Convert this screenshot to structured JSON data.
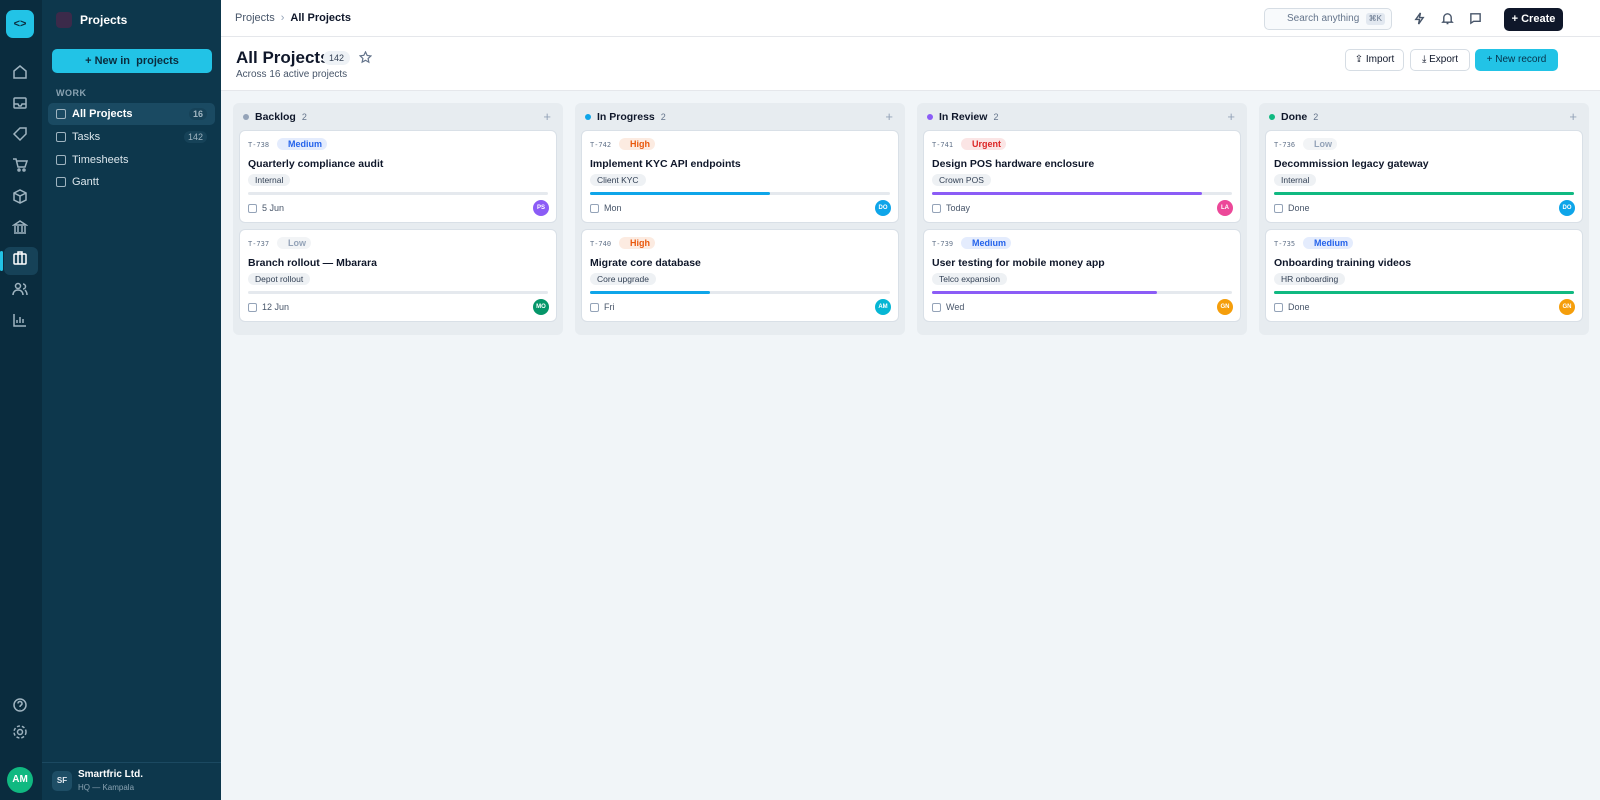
{
  "rail": {
    "avatar": "AM"
  },
  "sidebar": {
    "title": "Projects",
    "new_button": "New in  projects",
    "section": "WORK",
    "items": [
      {
        "label": "All Projects",
        "count": 16
      },
      {
        "label": "Tasks",
        "count": 142
      },
      {
        "label": "Timesheets"
      },
      {
        "label": "Gantt"
      }
    ],
    "org": {
      "initials": "SF",
      "name": "Smartfric Ltd.",
      "location": "HQ — Kampala"
    }
  },
  "topbar": {
    "breadcrumbs": [
      "Projects",
      "All Projects"
    ],
    "search": "Search anything",
    "shortcut": "⌘K",
    "create": "Create"
  },
  "header": {
    "title": "All Projects",
    "count": 142,
    "subtitle": "Across 16 active projects",
    "actions": [
      "Import",
      "Export",
      "New record"
    ]
  },
  "board": {
    "columns": [
      {
        "name": "Backlog",
        "color": "#94a3b8",
        "count": 2,
        "cards": [
          {
            "id": "T-738",
            "priority": "Medium",
            "priority_color": "#2563eb",
            "title": "Quarterly compliance audit",
            "tag": "Internal",
            "progress": 0,
            "due": "5 Jun",
            "assignee": "PS",
            "assignee_color": "#8b5cf6"
          },
          {
            "id": "T-737",
            "priority": "Low",
            "priority_color": "#94a3b8",
            "title": "Branch rollout — Mbarara",
            "tag": "Depot rollout",
            "progress": 0,
            "due": "12 Jun",
            "assignee": "MO",
            "assignee_color": "#059669"
          }
        ]
      },
      {
        "name": "In Progress",
        "color": "#0ea5e9",
        "count": 2,
        "cards": [
          {
            "id": "T-742",
            "priority": "High",
            "priority_color": "#ea580c",
            "title": "Implement KYC API endpoints",
            "tag": "Client KYC",
            "progress": 60,
            "due": "Mon",
            "assignee": "DO",
            "assignee_color": "#0ea5e9"
          },
          {
            "id": "T-740",
            "priority": "High",
            "priority_color": "#ea580c",
            "title": "Migrate core database",
            "tag": "Core upgrade",
            "progress": 40,
            "due": "Fri",
            "assignee": "AM",
            "assignee_color": "#06b6d4"
          }
        ]
      },
      {
        "name": "In Review",
        "color": "#8b5cf6",
        "count": 2,
        "cards": [
          {
            "id": "T-741",
            "priority": "Urgent",
            "priority_color": "#dc2626",
            "title": "Design POS hardware enclosure",
            "tag": "Crown POS",
            "progress": 90,
            "due": "Today",
            "assignee": "LA",
            "assignee_color": "#ec4899"
          },
          {
            "id": "T-739",
            "priority": "Medium",
            "priority_color": "#2563eb",
            "title": "User testing for mobile money app",
            "tag": "Telco expansion",
            "progress": 75,
            "due": "Wed",
            "assignee": "GN",
            "assignee_color": "#f59e0b"
          }
        ]
      },
      {
        "name": "Done",
        "color": "#10b981",
        "count": 2,
        "cards": [
          {
            "id": "T-736",
            "priority": "Low",
            "priority_color": "#94a3b8",
            "title": "Decommission legacy gateway",
            "tag": "Internal",
            "progress": 100,
            "due": "Done",
            "assignee": "DO",
            "assignee_color": "#0ea5e9"
          },
          {
            "id": "T-735",
            "priority": "Medium",
            "priority_color": "#2563eb",
            "title": "Onboarding training videos",
            "tag": "HR onboarding",
            "progress": 100,
            "due": "Done",
            "assignee": "GN",
            "assignee_color": "#f59e0b"
          }
        ]
      }
    ]
  }
}
